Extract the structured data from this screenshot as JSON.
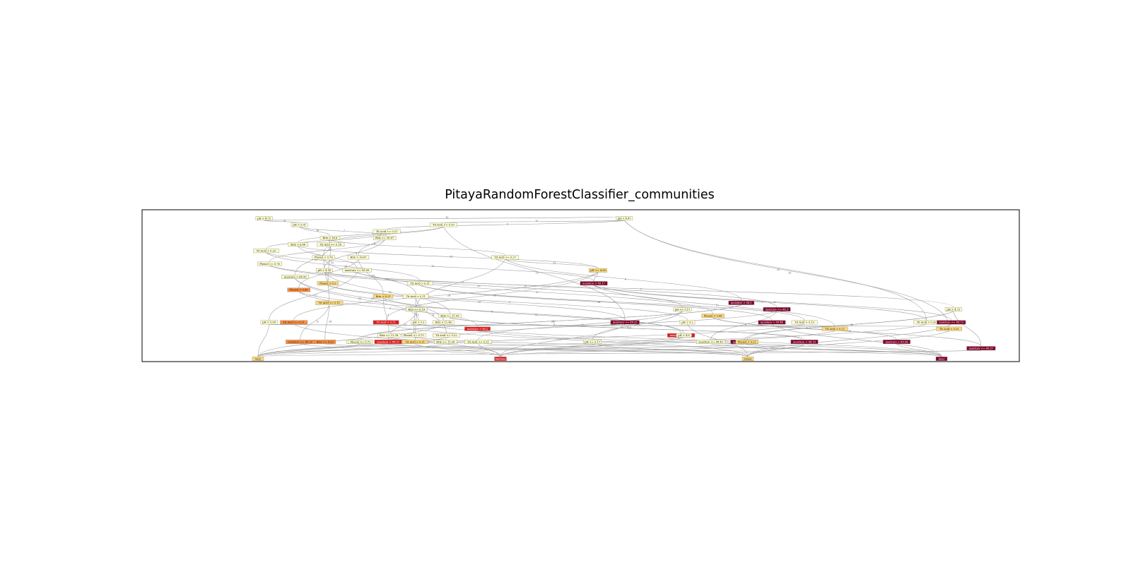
{
  "figure": {
    "title": "PitayaRandomForestClassifier_communities"
  },
  "colors": {
    "frame": "#000000",
    "edge": "#9a9a9a",
    "pale": "#ffffcc",
    "light_orange": "#fed976",
    "orange": "#fd8d3c",
    "red": "#e31a1c",
    "dark_red": "#800026"
  },
  "diagram": {
    "nodes": [
      {
        "id": "n1",
        "label": "pH > 4.73",
        "color": "pale",
        "row": 1,
        "col": 4
      },
      {
        "id": "n2",
        "label": "pH > 4.87",
        "color": "pale",
        "row": 1,
        "col": 16
      },
      {
        "id": "n3",
        "label": "pH > 5.01",
        "color": "pale",
        "row": 2,
        "col": 5
      },
      {
        "id": "n4",
        "label": "Tit Acid <= 0.39",
        "color": "pale",
        "row": 2,
        "col": 10
      },
      {
        "id": "n5",
        "label": "Tit Acid <= 0.11",
        "color": "pale",
        "row": 3,
        "col": 8
      },
      {
        "id": "n6",
        "label": "Brix > 16.6",
        "color": "pale",
        "row": 4,
        "col": 6
      },
      {
        "id": "n7",
        "label": "Brix <= 16.67",
        "color": "pale",
        "row": 4,
        "col": 8
      },
      {
        "id": "n8",
        "label": "Brix > 8.88",
        "color": "pale",
        "row": 5,
        "col": 5
      },
      {
        "id": "n9",
        "label": "Tit Acid <= 0.16",
        "color": "pale",
        "row": 5,
        "col": 6
      },
      {
        "id": "n10",
        "label": "Tit Acid > 0.25",
        "color": "pale",
        "row": 6,
        "col": 4
      },
      {
        "id": "n11",
        "label": "Brix > 16.67",
        "color": "pale",
        "row": 7,
        "col": 7
      },
      {
        "id": "n12",
        "label": "Phenol > 0.76",
        "color": "pale",
        "row": 7,
        "col": 6
      },
      {
        "id": "n13",
        "label": "Tit Acid <= 0.27",
        "color": "pale",
        "row": 7,
        "col": 12
      },
      {
        "id": "n14",
        "label": "Phenol <= 0.76",
        "color": "pale",
        "row": 8,
        "col": 4
      },
      {
        "id": "n15",
        "label": "pH > 4.95",
        "color": "pale",
        "row": 9,
        "col": 6
      },
      {
        "id": "n16",
        "label": "moisture <= 88.99",
        "color": "pale",
        "row": 9,
        "col": 7
      },
      {
        "id": "n17",
        "label": "pH <= 4.89",
        "color": "light_orange",
        "row": 9,
        "col": 15
      },
      {
        "id": "n18",
        "label": "moisture > 88.99",
        "color": "pale",
        "row": 10,
        "col": 5
      },
      {
        "id": "n19",
        "label": "Phenol > 0.2",
        "color": "light_orange",
        "row": 11,
        "col": 6
      },
      {
        "id": "n20",
        "label": "Tit Acid > 0.11",
        "color": "pale",
        "row": 11,
        "col": 9
      },
      {
        "id": "n21",
        "label": "moisture > 89.17",
        "color": "dark_red",
        "row": 11,
        "col": 15
      },
      {
        "id": "n22",
        "label": "Phenol > 0.65",
        "color": "orange",
        "row": 12,
        "col": 5
      },
      {
        "id": "n23",
        "label": "Brix > 8.21",
        "color": "light_orange",
        "row": 13,
        "col": 8
      },
      {
        "id": "n24",
        "label": "Tit Acid > 0.11",
        "color": "pale",
        "row": 13,
        "col": 9
      },
      {
        "id": "n25",
        "label": "Tit Acid <= 0.11",
        "color": "light_orange",
        "row": 14,
        "col": 6
      },
      {
        "id": "n26",
        "label": "moisture > 88.5",
        "color": "dark_red",
        "row": 14,
        "col": 20
      },
      {
        "id": "n27",
        "label": "Brix <= 8.18",
        "color": "pale",
        "row": 15,
        "col": 9
      },
      {
        "id": "n28",
        "label": "moisture <= 88.3",
        "color": "dark_red",
        "row": 15,
        "col": 21
      },
      {
        "id": "n29",
        "label": "pH <= 5.17",
        "color": "pale",
        "row": 15,
        "col": 18
      },
      {
        "id": "n30",
        "label": "pH > 4.73",
        "color": "pale",
        "row": 15,
        "col": 27
      },
      {
        "id": "n31",
        "label": "Brix <= 11.59",
        "color": "pale",
        "row": 16,
        "col": 10
      },
      {
        "id": "n32",
        "label": "Phenol > 0.68",
        "color": "light_orange",
        "row": 16,
        "col": 19
      },
      {
        "id": "n33",
        "label": "pH > 5.08",
        "color": "pale",
        "row": 17,
        "col": 4
      },
      {
        "id": "n34",
        "label": "Tit Acid <= 0.11",
        "color": "orange",
        "row": 17,
        "col": 5
      },
      {
        "id": "n35",
        "label": "Tit Acid > 0.11",
        "color": "red",
        "row": 17,
        "col": 8
      },
      {
        "id": "n36",
        "label": "pH > 5.3",
        "color": "pale",
        "row": 17,
        "col": 9
      },
      {
        "id": "n37",
        "label": "Brix > 11.46",
        "color": "pale",
        "row": 17,
        "col": 10
      },
      {
        "id": "n38",
        "label": "moisture <= 88.25",
        "color": "dark_red",
        "row": 17,
        "col": 16
      },
      {
        "id": "n39",
        "label": "pH > 5.2",
        "color": "pale",
        "row": 17,
        "col": 18
      },
      {
        "id": "n40",
        "label": "moisture > 88.44",
        "color": "dark_red",
        "row": 17,
        "col": 21
      },
      {
        "id": "n41",
        "label": "Tit Acid > 0.13",
        "color": "pale",
        "row": 17,
        "col": 22
      },
      {
        "id": "n42",
        "label": "Tit Acid > 0.25",
        "color": "pale",
        "row": 17,
        "col": 26
      },
      {
        "id": "n43",
        "label": "moisture <= 88.73",
        "color": "dark_red",
        "row": 17,
        "col": 27
      },
      {
        "id": "n44",
        "label": "moisture > 88.2",
        "color": "red",
        "row": 18,
        "col": 11
      },
      {
        "id": "n45",
        "label": "moisture > 88.49",
        "color": "red",
        "row": 19,
        "col": 18
      },
      {
        "id": "n46",
        "label": "pH > 4.8",
        "color": "pale",
        "row": 19,
        "col": 18
      },
      {
        "id": "n47",
        "label": "Brix <= 11.38",
        "color": "pale",
        "row": 19,
        "col": 8
      },
      {
        "id": "n48",
        "label": "Phenol <= 0.75",
        "color": "pale",
        "row": 19,
        "col": 9
      },
      {
        "id": "n49",
        "label": "Tit Acid <= 0.22",
        "color": "pale",
        "row": 19,
        "col": 10
      },
      {
        "id": "n50",
        "label": "moisture <= 88.92",
        "color": "orange",
        "row": 20,
        "col": 5
      },
      {
        "id": "n51",
        "label": "Brix <= 8.25",
        "color": "orange",
        "row": 20,
        "col": 6
      },
      {
        "id": "n52",
        "label": "Brix <= 11.39",
        "color": "pale",
        "row": 20,
        "col": 7
      },
      {
        "id": "n53",
        "label": "Phenol <= 0.72",
        "color": "pale",
        "row": 20,
        "col": 7
      },
      {
        "id": "n54",
        "label": "Tit Acid > 0.21",
        "color": "light_orange",
        "row": 20,
        "col": 9
      },
      {
        "id": "n55",
        "label": "moisture > 88.37",
        "color": "red",
        "row": 20,
        "col": 8
      },
      {
        "id": "n56",
        "label": "moisture <= 88.43",
        "color": "pale",
        "row": 20,
        "col": 19
      },
      {
        "id": "n57",
        "label": "Brix <= 11.08",
        "color": "pale",
        "row": 20,
        "col": 10
      },
      {
        "id": "n58",
        "label": "Tit Acid <= 0.21",
        "color": "pale",
        "row": 20,
        "col": 11
      },
      {
        "id": "n59",
        "label": "pH <= 5.17",
        "color": "pale",
        "row": 20,
        "col": 15
      },
      {
        "id": "n60",
        "label": "moisture > 88.37",
        "color": "dark_red",
        "row": 20,
        "col": 20
      },
      {
        "id": "n61",
        "label": "Phenol > 0.21",
        "color": "light_orange",
        "row": 20,
        "col": 20
      },
      {
        "id": "n62",
        "label": "pH > 4.93",
        "color": "pale",
        "row": 20,
        "col": 22
      },
      {
        "id": "n63",
        "label": "moisture > 88.19",
        "color": "dark_red",
        "row": 20,
        "col": 22
      },
      {
        "id": "n64",
        "label": "moisture > 88.54",
        "color": "dark_red",
        "row": 20,
        "col": 25
      },
      {
        "id": "n65",
        "label": "moisture <= 88.57",
        "color": "dark_red",
        "row": 21,
        "col": 28
      },
      {
        "id": "n66",
        "label": "Tit Acid > 0.27",
        "color": "light_orange",
        "row": 18,
        "col": 23
      },
      {
        "id": "n67",
        "label": "Tit Acid > 0.25",
        "color": "light_orange",
        "row": 18,
        "col": 27
      }
    ],
    "edge_labels": [
      "10",
      "31",
      "13",
      "0",
      "18",
      "7",
      "2",
      "6",
      "5",
      "8",
      "23",
      "3",
      "15",
      "4",
      "12",
      "24",
      "20"
    ],
    "leaves": [
      {
        "id": "leaf1",
        "label": "Very",
        "color": "light_orange"
      },
      {
        "id": "leaf2",
        "label": "Medium",
        "color": "red"
      },
      {
        "id": "leaf3",
        "label": "Sweet",
        "color": "light_orange"
      },
      {
        "id": "leaf4",
        "label": "Sour",
        "color": "dark_red"
      }
    ]
  }
}
